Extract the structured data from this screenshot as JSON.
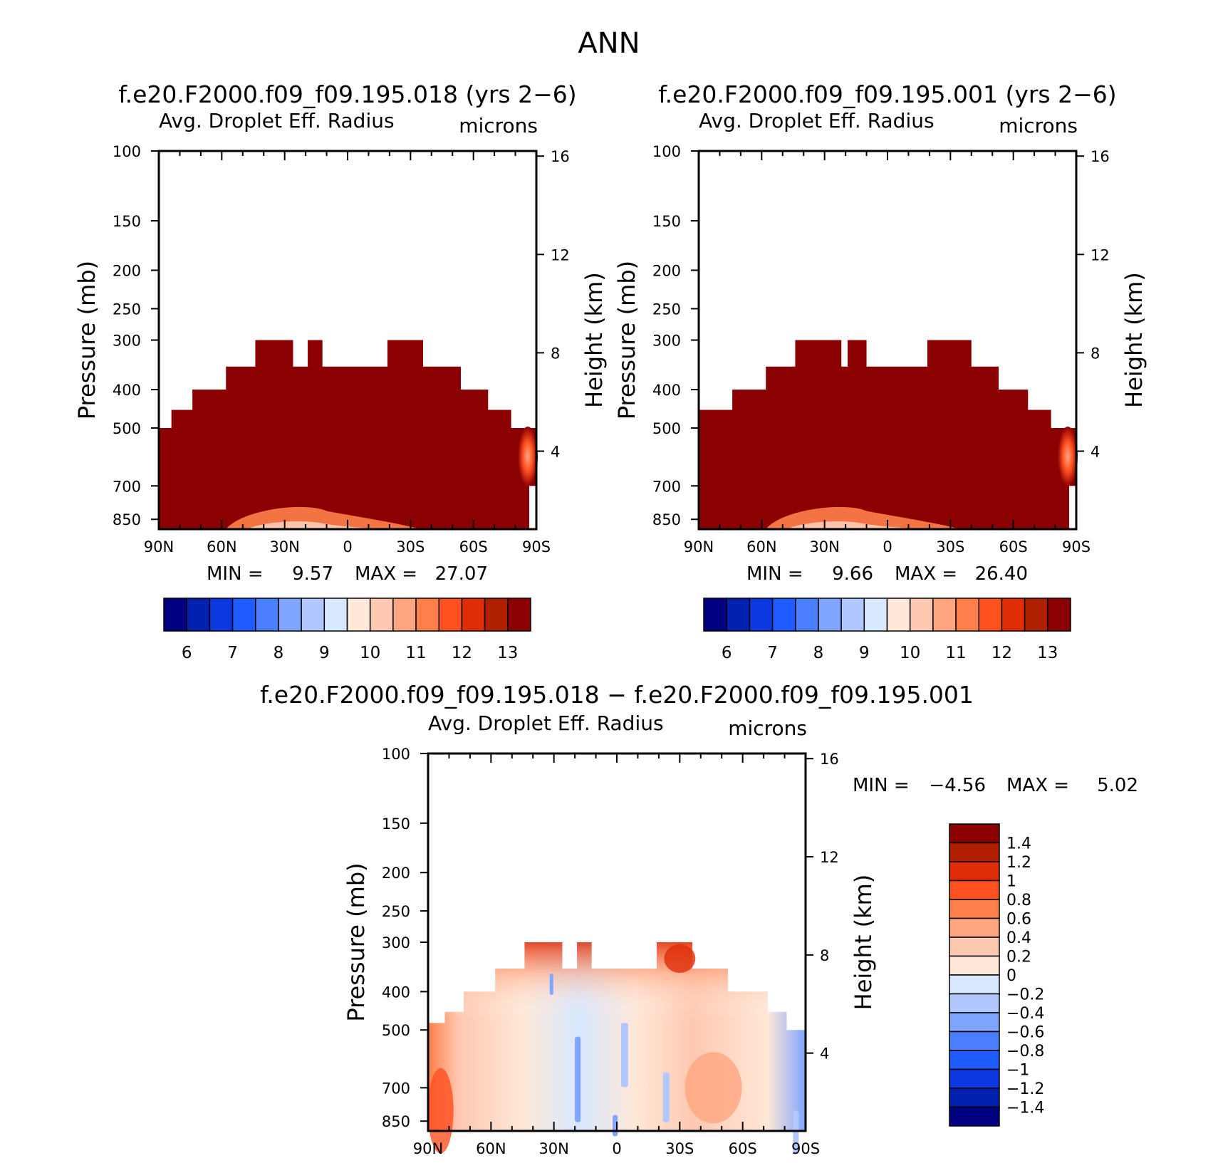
{
  "figure": {
    "title": "ANN"
  },
  "colors": {
    "field": "#8B0000",
    "field_bins": [
      "#000080",
      "#0020B0",
      "#0B38E0",
      "#1F5BFF",
      "#4A7FFF",
      "#7FA5FF",
      "#B0C8FF",
      "#D8E8FF",
      "#FFE8D8",
      "#FFC8B0",
      "#FFA580",
      "#FF7F4A",
      "#FF5020",
      "#E02D08",
      "#B02000",
      "#8B0000"
    ],
    "diff_bins": [
      "#000080",
      "#0020B0",
      "#0B38E0",
      "#1F5BFF",
      "#4A7FFF",
      "#7FA5FF",
      "#B0C8FF",
      "#D8E8FF",
      "#FFE8D8",
      "#FFC8B0",
      "#FFA580",
      "#FF7F4A",
      "#FF5020",
      "#E02D08",
      "#B02000",
      "#8B0000"
    ]
  },
  "chart_data": [
    {
      "id": "panel_left",
      "type": "heatmap",
      "title": "f.e20.F2000.f09_f09.195.018 (yrs 2−6)",
      "variable": "Avg. Droplet Eff. Radius",
      "units": "microns",
      "ylabel": "Pressure (mb)",
      "y2label": "Height (km)",
      "x_ticks": [
        "90N",
        "60N",
        "30N",
        "0",
        "30S",
        "60S",
        "90S"
      ],
      "y_ticks": [
        100,
        150,
        200,
        250,
        300,
        400,
        500,
        700,
        850
      ],
      "y2_ticks": [
        16,
        12,
        8,
        4
      ],
      "ylim": [
        100,
        900
      ],
      "xlim": [
        90,
        -90
      ],
      "min_label": "MIN =",
      "min_value": "9.57",
      "max_label": "MAX =",
      "max_value": "27.07",
      "colorbar_labels": [
        "6",
        "7",
        "8",
        "9",
        "10",
        "11",
        "12",
        "13"
      ],
      "cloud_top_profile": [
        {
          "lat": 90,
          "p": 500
        },
        {
          "lat": 84,
          "p": 450
        },
        {
          "lat": 74,
          "p": 400
        },
        {
          "lat": 58,
          "p": 350
        },
        {
          "lat": 44,
          "p": 300
        },
        {
          "lat": 26,
          "p": 350
        },
        {
          "lat": 19,
          "p": 300
        },
        {
          "lat": 12,
          "p": 350
        },
        {
          "lat": -19,
          "p": 300
        },
        {
          "lat": -36,
          "p": 350
        },
        {
          "lat": -54,
          "p": 400
        },
        {
          "lat": -67,
          "p": 450
        },
        {
          "lat": -78,
          "p": 500
        },
        {
          "lat": -90,
          "p": 500
        }
      ]
    },
    {
      "id": "panel_right",
      "type": "heatmap",
      "title": "f.e20.F2000.f09_f09.195.001 (yrs 2−6)",
      "variable": "Avg. Droplet Eff. Radius",
      "units": "microns",
      "ylabel": "Pressure (mb)",
      "y2label": "Height (km)",
      "x_ticks": [
        "90N",
        "60N",
        "30N",
        "0",
        "30S",
        "60S",
        "90S"
      ],
      "y_ticks": [
        100,
        150,
        200,
        250,
        300,
        400,
        500,
        700,
        850
      ],
      "y2_ticks": [
        16,
        12,
        8,
        4
      ],
      "ylim": [
        100,
        900
      ],
      "xlim": [
        90,
        -90
      ],
      "min_label": "MIN =",
      "min_value": "9.66",
      "max_label": "MAX =",
      "max_value": "26.40",
      "colorbar_labels": [
        "6",
        "7",
        "8",
        "9",
        "10",
        "11",
        "12",
        "13"
      ],
      "cloud_top_profile": [
        {
          "lat": 90,
          "p": 450
        },
        {
          "lat": 74,
          "p": 400
        },
        {
          "lat": 58,
          "p": 350
        },
        {
          "lat": 44,
          "p": 300
        },
        {
          "lat": 22,
          "p": 350
        },
        {
          "lat": 19,
          "p": 300
        },
        {
          "lat": 10,
          "p": 350
        },
        {
          "lat": -19,
          "p": 300
        },
        {
          "lat": -40,
          "p": 350
        },
        {
          "lat": -53,
          "p": 400
        },
        {
          "lat": -67,
          "p": 450
        },
        {
          "lat": -78,
          "p": 500
        },
        {
          "lat": -90,
          "p": 500
        }
      ]
    },
    {
      "id": "panel_diff",
      "type": "heatmap",
      "title": "f.e20.F2000.f09_f09.195.018 − f.e20.F2000.f09_f09.195.001",
      "variable": "Avg. Droplet Eff. Radius",
      "units": "microns",
      "ylabel": "Pressure (mb)",
      "y2label": "Height (km)",
      "x_ticks": [
        "90N",
        "60N",
        "30N",
        "0",
        "30S",
        "60S",
        "90S"
      ],
      "y_ticks": [
        100,
        150,
        200,
        250,
        300,
        400,
        500,
        700,
        850
      ],
      "y2_ticks": [
        16,
        12,
        8,
        4
      ],
      "ylim": [
        100,
        900
      ],
      "xlim": [
        90,
        -90
      ],
      "min_label": "MIN =",
      "min_value": "−4.56",
      "max_label": "MAX =",
      "max_value": "5.02",
      "colorbar_labels": [
        "1.4",
        "1.2",
        "1",
        "0.8",
        "0.6",
        "0.4",
        "0.2",
        "0",
        "−0.2",
        "−0.4",
        "−0.6",
        "−0.8",
        "−1",
        "−1.2",
        "−1.4"
      ],
      "cloud_top_profile": [
        {
          "lat": 90,
          "p": 480
        },
        {
          "lat": 82,
          "p": 450
        },
        {
          "lat": 73,
          "p": 400
        },
        {
          "lat": 58,
          "p": 350
        },
        {
          "lat": 44,
          "p": 300
        },
        {
          "lat": 26,
          "p": 350
        },
        {
          "lat": 19,
          "p": 300
        },
        {
          "lat": 12,
          "p": 350
        },
        {
          "lat": -19,
          "p": 300
        },
        {
          "lat": -36,
          "p": 350
        },
        {
          "lat": -53,
          "p": 400
        },
        {
          "lat": -72,
          "p": 450
        },
        {
          "lat": -81,
          "p": 500
        },
        {
          "lat": -90,
          "p": 500
        }
      ]
    }
  ]
}
